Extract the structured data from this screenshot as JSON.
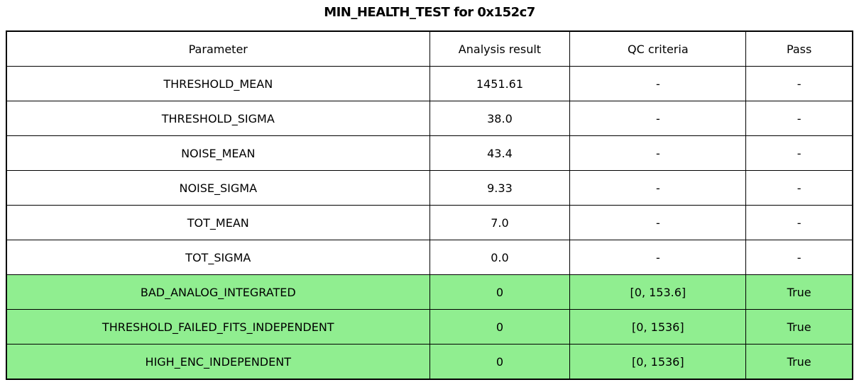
{
  "title": "MIN_HEALTH_TEST for 0x152c7",
  "colors": {
    "pass_row_bg": "#90EE90",
    "border": "#000000",
    "text": "#000000",
    "background": "#ffffff"
  },
  "chart_data": {
    "type": "table",
    "title": "MIN_HEALTH_TEST for 0x152c7",
    "columns": [
      "Parameter",
      "Analysis result",
      "QC criteria",
      "Pass"
    ],
    "rows": [
      {
        "parameter": "THRESHOLD_MEAN",
        "analysis_result": "1451.61",
        "qc_criteria": "-",
        "pass": "-",
        "highlight": false
      },
      {
        "parameter": "THRESHOLD_SIGMA",
        "analysis_result": "38.0",
        "qc_criteria": "-",
        "pass": "-",
        "highlight": false
      },
      {
        "parameter": "NOISE_MEAN",
        "analysis_result": "43.4",
        "qc_criteria": "-",
        "pass": "-",
        "highlight": false
      },
      {
        "parameter": "NOISE_SIGMA",
        "analysis_result": "9.33",
        "qc_criteria": "-",
        "pass": "-",
        "highlight": false
      },
      {
        "parameter": "TOT_MEAN",
        "analysis_result": "7.0",
        "qc_criteria": "-",
        "pass": "-",
        "highlight": false
      },
      {
        "parameter": "TOT_SIGMA",
        "analysis_result": "0.0",
        "qc_criteria": "-",
        "pass": "-",
        "highlight": false
      },
      {
        "parameter": "BAD_ANALOG_INTEGRATED",
        "analysis_result": "0",
        "qc_criteria": "[0, 153.6]",
        "pass": "True",
        "highlight": true
      },
      {
        "parameter": "THRESHOLD_FAILED_FITS_INDEPENDENT",
        "analysis_result": "0",
        "qc_criteria": "[0, 1536]",
        "pass": "True",
        "highlight": true
      },
      {
        "parameter": "HIGH_ENC_INDEPENDENT",
        "analysis_result": "0",
        "qc_criteria": "[0, 1536]",
        "pass": "True",
        "highlight": true
      }
    ]
  }
}
